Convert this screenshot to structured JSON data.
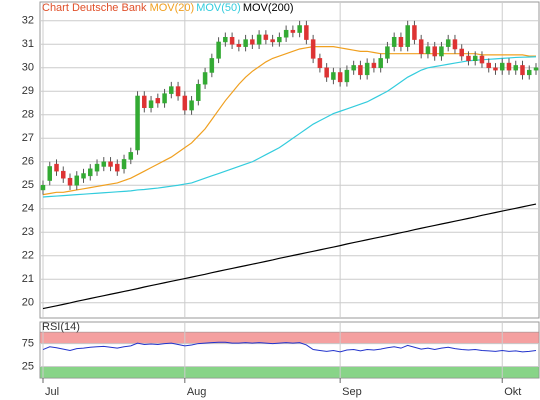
{
  "chart_data": [
    {
      "type": "candlestick",
      "title": "Chart Deutsche Bank",
      "title_color": "#e0502a",
      "categories": [
        "Jul",
        null,
        null,
        null,
        null,
        null,
        null,
        null,
        null,
        null,
        null,
        null,
        null,
        null,
        null,
        null,
        null,
        null,
        null,
        null,
        null,
        "Aug",
        null,
        null,
        null,
        null,
        null,
        null,
        null,
        null,
        null,
        null,
        null,
        null,
        null,
        null,
        null,
        null,
        null,
        null,
        null,
        null,
        null,
        null,
        "Sep",
        null,
        null,
        null,
        null,
        null,
        null,
        null,
        null,
        null,
        null,
        null,
        null,
        null,
        null,
        null,
        null,
        null,
        null,
        null,
        null,
        null,
        null,
        null,
        "Okt",
        null,
        null,
        null,
        null,
        null
      ],
      "open": [
        24.8,
        25.2,
        25.9,
        25.6,
        25.3,
        25.0,
        25.3,
        25.4,
        25.6,
        25.8,
        26.0,
        25.9,
        25.7,
        26.1,
        26.5,
        28.8,
        28.3,
        28.7,
        28.5,
        28.9,
        29.2,
        28.8,
        28.2,
        28.6,
        29.3,
        29.8,
        30.4,
        31.1,
        31.3,
        31.0,
        30.9,
        31.2,
        31.0,
        31.4,
        31.2,
        31.1,
        31.3,
        31.6,
        31.5,
        31.8,
        31.2,
        30.4,
        30.0,
        29.5,
        29.8,
        29.4,
        29.9,
        30.1,
        29.7,
        30.2,
        30.0,
        30.4,
        30.9,
        31.3,
        30.9,
        31.8,
        31.2,
        30.6,
        30.9,
        30.5,
        30.9,
        31.2,
        30.8,
        30.5,
        30.3,
        30.5,
        30.2,
        30.0,
        29.9,
        30.2,
        29.9,
        30.1,
        29.7,
        29.9
      ],
      "high": [
        25.2,
        26.0,
        26.1,
        25.8,
        25.5,
        25.6,
        25.7,
        25.9,
        26.1,
        26.2,
        26.2,
        26.1,
        26.3,
        26.6,
        29.0,
        29.0,
        28.8,
        28.9,
        29.1,
        29.4,
        29.4,
        29.0,
        28.8,
        29.5,
        30.0,
        30.6,
        31.3,
        31.5,
        31.5,
        31.2,
        31.4,
        31.4,
        31.6,
        31.6,
        31.4,
        31.5,
        31.8,
        31.8,
        32.0,
        32.0,
        31.4,
        30.6,
        30.2,
        30.0,
        30.0,
        30.1,
        30.3,
        30.3,
        30.4,
        30.4,
        30.6,
        31.1,
        31.5,
        31.5,
        32.0,
        32.0,
        31.4,
        31.1,
        31.1,
        31.1,
        31.4,
        31.4,
        31.0,
        30.7,
        30.7,
        30.7,
        30.4,
        30.2,
        30.4,
        30.4,
        30.3,
        30.3,
        30.1,
        30.2
      ],
      "low": [
        24.6,
        25.0,
        25.4,
        25.1,
        24.8,
        24.8,
        25.1,
        25.2,
        25.4,
        25.6,
        25.6,
        25.4,
        25.5,
        25.9,
        26.3,
        28.1,
        28.1,
        28.3,
        28.3,
        28.7,
        28.6,
        28.0,
        28.0,
        28.4,
        29.1,
        29.6,
        30.2,
        30.9,
        30.8,
        30.7,
        30.7,
        30.8,
        30.8,
        31.0,
        30.9,
        30.9,
        31.1,
        31.3,
        31.3,
        31.0,
        30.2,
        29.8,
        29.4,
        29.3,
        29.2,
        29.2,
        29.7,
        29.5,
        29.5,
        29.8,
        29.8,
        30.2,
        30.7,
        30.7,
        30.7,
        31.0,
        30.4,
        30.4,
        30.3,
        30.3,
        30.7,
        30.6,
        30.3,
        30.1,
        30.1,
        30.0,
        29.8,
        29.7,
        29.7,
        29.7,
        29.7,
        29.5,
        29.5,
        29.7
      ],
      "close": [
        25.0,
        25.8,
        25.6,
        25.3,
        25.0,
        25.4,
        25.5,
        25.7,
        25.9,
        26.0,
        25.8,
        25.6,
        26.1,
        26.4,
        28.8,
        28.3,
        28.6,
        28.5,
        28.9,
        29.2,
        28.8,
        28.2,
        28.6,
        29.3,
        29.8,
        30.4,
        31.1,
        31.3,
        31.0,
        30.9,
        31.2,
        31.0,
        31.4,
        31.2,
        31.1,
        31.3,
        31.6,
        31.5,
        31.8,
        31.2,
        30.4,
        30.0,
        29.6,
        29.8,
        29.4,
        29.9,
        30.1,
        29.7,
        30.2,
        30.0,
        30.4,
        30.9,
        31.3,
        30.9,
        31.8,
        31.2,
        30.6,
        30.9,
        30.5,
        30.9,
        31.2,
        30.8,
        30.5,
        30.3,
        30.5,
        30.2,
        30.0,
        29.9,
        30.2,
        29.9,
        30.1,
        29.7,
        29.9,
        30.0
      ],
      "up_color": "#33aa33",
      "down_color": "#dd3333",
      "series": [
        {
          "name": "MOV(20)",
          "color": "#f0a020",
          "values": [
            24.6,
            24.65,
            24.7,
            24.7,
            24.75,
            24.8,
            24.85,
            24.9,
            24.95,
            25.0,
            25.05,
            25.1,
            25.2,
            25.3,
            25.45,
            25.6,
            25.75,
            25.9,
            26.05,
            26.2,
            26.4,
            26.6,
            26.8,
            27.1,
            27.4,
            27.8,
            28.2,
            28.6,
            28.95,
            29.3,
            29.6,
            29.85,
            30.05,
            30.25,
            30.4,
            30.5,
            30.6,
            30.7,
            30.8,
            30.85,
            30.9,
            30.9,
            30.9,
            30.9,
            30.85,
            30.8,
            30.75,
            30.7,
            30.7,
            30.65,
            30.6,
            30.6,
            30.6,
            30.6,
            30.6,
            30.6,
            30.6,
            30.6,
            30.6,
            30.6,
            30.6,
            30.6,
            30.6,
            30.6,
            30.6,
            30.55,
            30.55,
            30.55,
            30.55,
            30.55,
            30.55,
            30.55,
            30.5,
            30.5
          ]
        },
        {
          "name": "MOV(50)",
          "color": "#33ccdd",
          "values": [
            24.5,
            24.52,
            24.54,
            24.56,
            24.58,
            24.6,
            24.62,
            24.64,
            24.66,
            24.68,
            24.7,
            24.72,
            24.74,
            24.76,
            24.8,
            24.82,
            24.85,
            24.88,
            24.92,
            24.96,
            25.0,
            25.05,
            25.1,
            25.2,
            25.3,
            25.4,
            25.5,
            25.6,
            25.7,
            25.8,
            25.9,
            26.0,
            26.15,
            26.3,
            26.45,
            26.6,
            26.8,
            27.0,
            27.2,
            27.4,
            27.6,
            27.75,
            27.9,
            28.05,
            28.15,
            28.25,
            28.35,
            28.45,
            28.55,
            28.7,
            28.85,
            29.0,
            29.2,
            29.4,
            29.6,
            29.75,
            29.9,
            30.0,
            30.05,
            30.1,
            30.15,
            30.2,
            30.25,
            30.3,
            30.32,
            30.34,
            30.36,
            30.38,
            30.4,
            30.42,
            30.44,
            30.45,
            30.46,
            30.47
          ]
        },
        {
          "name": "MOV(200)",
          "color": "#000000",
          "values": [
            19.75,
            19.81,
            19.87,
            19.93,
            19.99,
            20.06,
            20.12,
            20.18,
            20.24,
            20.3,
            20.36,
            20.42,
            20.48,
            20.54,
            20.6,
            20.67,
            20.73,
            20.79,
            20.85,
            20.91,
            20.97,
            21.03,
            21.09,
            21.15,
            21.21,
            21.28,
            21.34,
            21.4,
            21.46,
            21.52,
            21.58,
            21.64,
            21.7,
            21.76,
            21.82,
            21.89,
            21.95,
            22.01,
            22.07,
            22.13,
            22.19,
            22.25,
            22.31,
            22.37,
            22.43,
            22.5,
            22.56,
            22.62,
            22.68,
            22.74,
            22.8,
            22.86,
            22.92,
            22.98,
            23.04,
            23.11,
            23.17,
            23.23,
            23.29,
            23.35,
            23.41,
            23.47,
            23.53,
            23.59,
            23.65,
            23.72,
            23.78,
            23.84,
            23.9,
            23.96,
            24.02,
            24.08,
            24.14,
            24.2
          ]
        }
      ],
      "ylim": [
        19.35,
        32.8
      ],
      "yticks": [
        20,
        21,
        22,
        23,
        24,
        25,
        26,
        27,
        28,
        29,
        30,
        31,
        32
      ],
      "grid": true
    },
    {
      "type": "line",
      "title": "RSI(14)",
      "series": [
        {
          "color": "#2233cc",
          "values": [
            62,
            68,
            66,
            63,
            60,
            64,
            65,
            67,
            68,
            69,
            67,
            65,
            68,
            70,
            76,
            73,
            74,
            73,
            75,
            76,
            73,
            70,
            72,
            75,
            76,
            77,
            78,
            78,
            76,
            76,
            77,
            76,
            77,
            76,
            75,
            76,
            77,
            76,
            77,
            72,
            62,
            60,
            58,
            60,
            57,
            61,
            62,
            59,
            62,
            61,
            63,
            66,
            68,
            65,
            71,
            67,
            63,
            65,
            62,
            65,
            67,
            64,
            62,
            61,
            62,
            60,
            59,
            58,
            60,
            58,
            59,
            57,
            58,
            60
          ]
        }
      ],
      "bands": [
        {
          "from": 75,
          "to": 100,
          "color": "#f4a0a0"
        },
        {
          "from": 0,
          "to": 25,
          "color": "#88d488"
        }
      ],
      "ylim": [
        0,
        122
      ],
      "yticks": [
        25,
        75
      ],
      "grid": true
    }
  ]
}
